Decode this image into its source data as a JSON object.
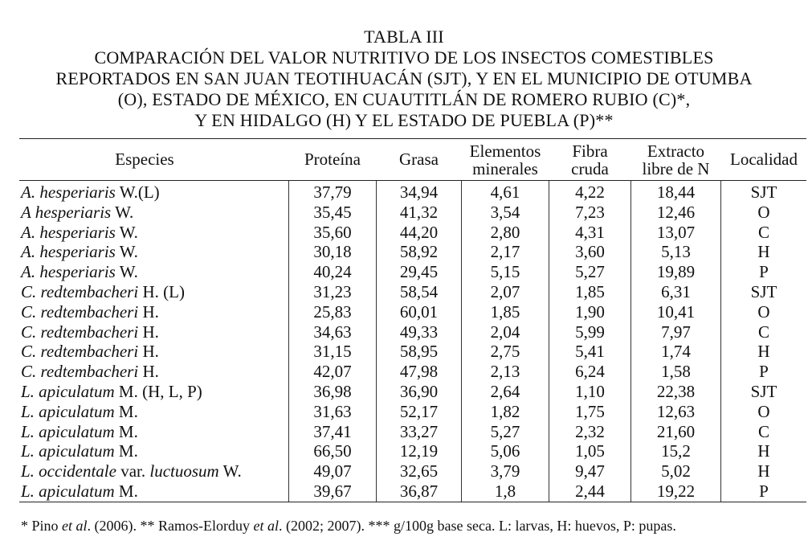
{
  "title": {
    "line1": "TABLA III",
    "line2": "COMPARACIÓN DEL VALOR NUTRITIVO DE LOS INSECTOS COMESTIBLES",
    "line3": "REPORTADOS EN SAN JUAN TEOTIHUACÁN (SJT), Y EN EL MUNICIPIO DE OTUMBA",
    "line4": "(O), ESTADO DE MÉXICO, EN CUAUTITLÁN DE ROMERO RUBIO (C)*,",
    "line5": "Y EN HIDALGO (H) Y EL ESTADO DE PUEBLA (P)**"
  },
  "headers": {
    "especies": "Especies",
    "proteina": "Proteína",
    "grasa": "Grasa",
    "elementos_1": "Elementos",
    "elementos_2": "minerales",
    "fibra_1": "Fibra",
    "fibra_2": "cruda",
    "extracto_1": "Extracto",
    "extracto_2": "libre de N",
    "localidad": "Localidad"
  },
  "rows": [
    {
      "genus": "A. hesperiaris",
      "author": " W.(L)",
      "proteina": "37,79",
      "grasa": "34,94",
      "minerales": "4,61",
      "fibra": "4,22",
      "extracto": "18,44",
      "localidad": "SJT"
    },
    {
      "genus": "A hesperiaris",
      "author": " W.",
      "proteina": "35,45",
      "grasa": "41,32",
      "minerales": "3,54",
      "fibra": "7,23",
      "extracto": "12,46",
      "localidad": "O"
    },
    {
      "genus": "A. hesperiaris",
      "author": " W.",
      "proteina": "35,60",
      "grasa": "44,20",
      "minerales": "2,80",
      "fibra": "4,31",
      "extracto": "13,07",
      "localidad": "C"
    },
    {
      "genus": "A. hesperiaris",
      "author": " W.",
      "proteina": "30,18",
      "grasa": "58,92",
      "minerales": "2,17",
      "fibra": "3,60",
      "extracto": "5,13",
      "localidad": "H"
    },
    {
      "genus": "A. hesperiaris",
      "author": " W.",
      "proteina": "40,24",
      "grasa": "29,45",
      "minerales": "5,15",
      "fibra": "5,27",
      "extracto": "19,89",
      "localidad": "P"
    },
    {
      "genus": "C. redtembacheri",
      "author": " H. (L)",
      "proteina": "31,23",
      "grasa": "58,54",
      "minerales": "2,07",
      "fibra": "1,85",
      "extracto": "6,31",
      "localidad": "SJT"
    },
    {
      "genus": "C. redtembacheri",
      "author": " H.",
      "proteina": "25,83",
      "grasa": "60,01",
      "minerales": "1,85",
      "fibra": "1,90",
      "extracto": "10,41",
      "localidad": "O"
    },
    {
      "genus": "C. redtembacheri",
      "author": " H.",
      "proteina": "34,63",
      "grasa": "49,33",
      "minerales": "2,04",
      "fibra": "5,99",
      "extracto": "7,97",
      "localidad": "C"
    },
    {
      "genus": "C. redtembacheri",
      "author": " H.",
      "proteina": "31,15",
      "grasa": "58,95",
      "minerales": "2,75",
      "fibra": "5,41",
      "extracto": "1,74",
      "localidad": "H"
    },
    {
      "genus": "C. redtembacheri",
      "author": " H.",
      "proteina": "42,07",
      "grasa": "47,98",
      "minerales": "2,13",
      "fibra": "6,24",
      "extracto": "1,58",
      "localidad": "P"
    },
    {
      "genus": "L. apiculatum",
      "author": " M. (H, L, P)",
      "proteina": "36,98",
      "grasa": "36,90",
      "minerales": "2,64",
      "fibra": "1,10",
      "extracto": "22,38",
      "localidad": "SJT"
    },
    {
      "genus": "L. apiculatum",
      "author": " M.",
      "proteina": "31,63",
      "grasa": "52,17",
      "minerales": "1,82",
      "fibra": "1,75",
      "extracto": "12,63",
      "localidad": "O"
    },
    {
      "genus": "L. apiculatum",
      "author": " M.",
      "proteina": "37,41",
      "grasa": "33,27",
      "minerales": "5,27",
      "fibra": "2,32",
      "extracto": "21,60",
      "localidad": "C"
    },
    {
      "genus": "L. apiculatum",
      "author": " M.",
      "proteina": "66,50",
      "grasa": "12,19",
      "minerales": "5,06",
      "fibra": "1,05",
      "extracto": "15,2",
      "localidad": "H"
    },
    {
      "genus": "L. occidentale",
      "author": " var. ",
      "genus2": "luctuosum",
      "author2": " W.",
      "proteina": "49,07",
      "grasa": "32,65",
      "minerales": "3,79",
      "fibra": "9,47",
      "extracto": "5,02",
      "localidad": "H"
    },
    {
      "genus": "L. apiculatum",
      "author": " M.",
      "proteina": "39,67",
      "grasa": "36,87",
      "minerales": "1,8",
      "fibra": "2,44",
      "extracto": "19,22",
      "localidad": "P"
    }
  ],
  "footnote": {
    "p1": "* Pino ",
    "i1": "et al",
    "p2": ". (2006). ** Ramos-Elorduy ",
    "i2": "et al",
    "p3": ". (2002; 2007). *** g/100g base seca. L: larvas, H: huevos, P: pupas."
  }
}
